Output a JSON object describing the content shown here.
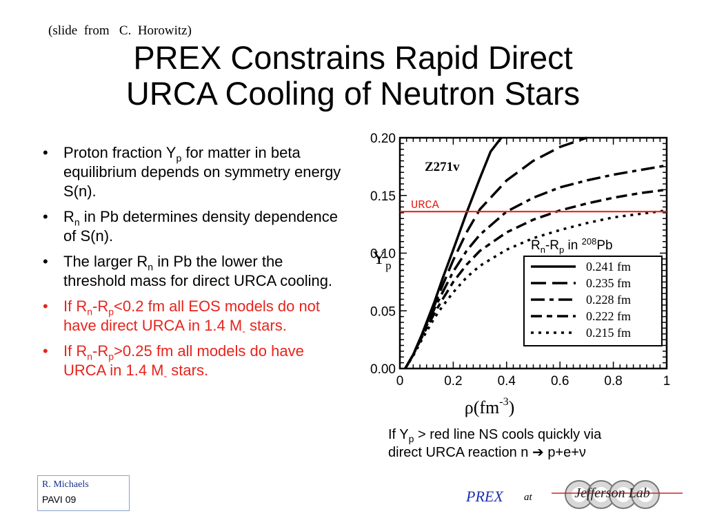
{
  "header": {
    "credit": "(slide  from   C.  Horowitz)",
    "title_line1": "PREX Constrains Rapid Direct",
    "title_line2": "URCA Cooling of Neutron Stars"
  },
  "bullets": [
    {
      "pre": "Proton fraction Y",
      "sub": "p",
      "post": " for matter in beta equilibrium depends on symmetry energy S(n).",
      "color": "#000000"
    },
    {
      "pre": "R",
      "sub": "n",
      "post": " in Pb determines density dependence of S(n).",
      "color": "#000000"
    },
    {
      "pre": "The larger R",
      "sub": "n",
      "post": " in Pb the lower the threshold mass for direct URCA cooling.",
      "color": "#000000"
    },
    {
      "pre": "If  R",
      "sub": "n",
      "mid": "-R",
      "sub2": "p",
      "post": "<0.2 fm  all EOS models do  not  have  direct  URCA  in  1.4 M",
      "sub3": "-",
      "post2": "  stars.",
      "color": "#e8231c"
    },
    {
      "pre": "If  R",
      "sub": "n",
      "mid": "-R",
      "sub2": "p",
      "post": ">0.25 fm  all models do have  URCA  in  1.4 M",
      "sub3": "-",
      "post2": "  stars.",
      "color": "#e8231c"
    }
  ],
  "chart_data": {
    "type": "line",
    "model_label": "Z271v",
    "threshold_label": "URCA",
    "threshold_value": 0.136,
    "threshold_color": "#e8231c",
    "xlabel": "ρ(fm",
    "xlabel_sup": "-3",
    "xlabel_end": ")",
    "ylabel": "Y",
    "ylabel_sub": "p",
    "xlim": [
      0,
      1
    ],
    "ylim": [
      0,
      0.2
    ],
    "x_ticks": [
      "0",
      "0.2",
      "0.4",
      "0.6",
      "0.8",
      "1"
    ],
    "y_ticks": [
      "0.00",
      "0.05",
      "0.10",
      "0.15",
      "0.20"
    ],
    "legend_title_pre": "R",
    "legend_title_sub": "n",
    "legend_title_mid": "-R",
    "legend_title_sub2": "p",
    "legend_title_post": " in ",
    "legend_title_sup": "208",
    "legend_title_end": "Pb",
    "series": [
      {
        "name": "0.241 fm",
        "x": [
          0.02,
          0.05,
          0.08,
          0.1,
          0.13,
          0.16,
          0.2,
          0.25,
          0.3,
          0.34,
          0.38
        ],
        "y": [
          0.0,
          0.012,
          0.028,
          0.04,
          0.058,
          0.078,
          0.103,
          0.135,
          0.165,
          0.188,
          0.2
        ]
      },
      {
        "name": "0.235 fm",
        "x": [
          0.02,
          0.05,
          0.08,
          0.1,
          0.13,
          0.16,
          0.2,
          0.25,
          0.3,
          0.4,
          0.5,
          0.6,
          0.7
        ],
        "y": [
          0.0,
          0.012,
          0.028,
          0.039,
          0.055,
          0.072,
          0.094,
          0.118,
          0.138,
          0.163,
          0.18,
          0.192,
          0.2
        ]
      },
      {
        "name": "0.228 fm",
        "x": [
          0.02,
          0.05,
          0.08,
          0.1,
          0.13,
          0.16,
          0.2,
          0.25,
          0.3,
          0.4,
          0.5,
          0.6,
          0.7,
          0.8,
          0.9,
          1.0
        ],
        "y": [
          0.0,
          0.012,
          0.027,
          0.037,
          0.052,
          0.066,
          0.084,
          0.102,
          0.116,
          0.136,
          0.148,
          0.157,
          0.163,
          0.168,
          0.172,
          0.176
        ]
      },
      {
        "name": "0.222 fm",
        "x": [
          0.02,
          0.05,
          0.08,
          0.1,
          0.13,
          0.16,
          0.2,
          0.25,
          0.3,
          0.4,
          0.5,
          0.6,
          0.7,
          0.8,
          0.9,
          1.0
        ],
        "y": [
          0.0,
          0.012,
          0.026,
          0.035,
          0.048,
          0.06,
          0.075,
          0.09,
          0.102,
          0.118,
          0.129,
          0.137,
          0.143,
          0.148,
          0.152,
          0.155
        ]
      },
      {
        "name": "0.215 fm",
        "x": [
          0.02,
          0.05,
          0.08,
          0.1,
          0.13,
          0.16,
          0.2,
          0.25,
          0.3,
          0.4,
          0.5,
          0.6,
          0.7,
          0.8,
          0.9,
          1.0
        ],
        "y": [
          0.0,
          0.011,
          0.024,
          0.032,
          0.044,
          0.054,
          0.066,
          0.079,
          0.089,
          0.103,
          0.113,
          0.12,
          0.126,
          0.131,
          0.134,
          0.137
        ]
      }
    ]
  },
  "caption": {
    "l1_pre": "If Y",
    "l1_sub": "p",
    "l1_post": " > red line NS cools quickly via",
    "l2_pre": "direct URCA reaction n ",
    "l2_post": "p+e+ν"
  },
  "footer": {
    "author": "R.  Michaels",
    "venue": "PAVI  09",
    "prex": "PREX",
    "at": "at",
    "lab_logo_text": "Jefferson Lab"
  }
}
